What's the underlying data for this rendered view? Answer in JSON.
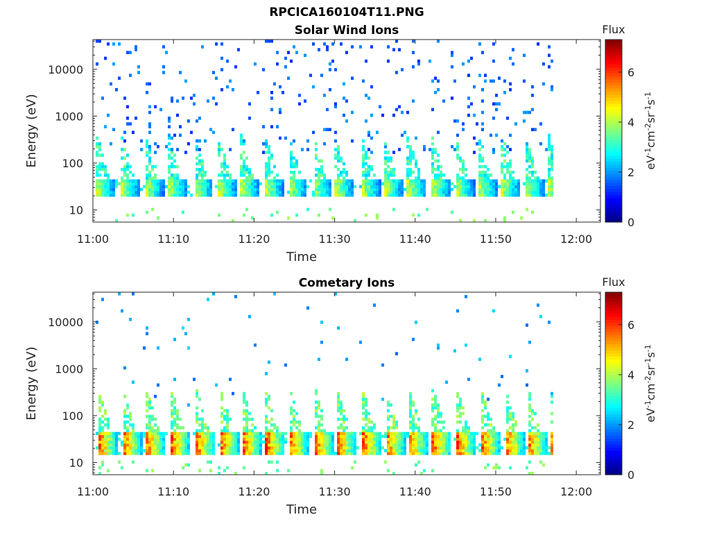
{
  "figure_title": "RPCICA160104T11.PNG",
  "chart_data": [
    {
      "type": "heatmap",
      "title": "Solar Wind Ions",
      "xlabel": "Time",
      "ylabel": "Energy (eV)",
      "x_ticks": [
        "11:00",
        "11:10",
        "11:20",
        "11:30",
        "11:40",
        "11:50",
        "12:00"
      ],
      "x_range": [
        "11:00",
        "12:03"
      ],
      "data_end": "11:57",
      "y_ticks": [
        10,
        100,
        1000,
        10000
      ],
      "y_scale": "log",
      "y_range": [
        5.5,
        43000
      ],
      "colorbar": {
        "title": "Flux",
        "label": "eV-1cm-2sr-1s-1",
        "ticks": [
          0,
          2,
          4,
          6
        ],
        "range": [
          0,
          7.3
        ],
        "colormap": "jet"
      },
      "burst_minutes": [
        0.3,
        3.3,
        6.3,
        9.2,
        12.4,
        15.4,
        18.2,
        21.2,
        24.1,
        27.2,
        29.9,
        33.2,
        36.0,
        38.9,
        41.9,
        44.8,
        47.7,
        50.6,
        53.5,
        56.4
      ],
      "core_band_eV": [
        18,
        40
      ],
      "core_flux": 4.8,
      "background_flux": 1.2
    },
    {
      "type": "heatmap",
      "title": "Cometary Ions",
      "xlabel": "Time",
      "ylabel": "Energy (eV)",
      "x_ticks": [
        "11:00",
        "11:10",
        "11:20",
        "11:30",
        "11:40",
        "11:50",
        "12:00"
      ],
      "x_range": [
        "11:00",
        "12:03"
      ],
      "data_end": "11:57",
      "y_ticks": [
        10,
        100,
        1000,
        10000
      ],
      "y_scale": "log",
      "y_range": [
        5.5,
        43000
      ],
      "colorbar": {
        "title": "Flux",
        "label": "eV-1cm-2sr-1s-1",
        "ticks": [
          0,
          2,
          4,
          6
        ],
        "range": [
          0,
          7.3
        ],
        "colormap": "jet"
      },
      "burst_minutes": [
        0.5,
        3.5,
        6.4,
        9.5,
        12.6,
        15.6,
        18.4,
        21.3,
        24.2,
        27.4,
        30.1,
        33.3,
        36.2,
        39.0,
        42.0,
        45.0,
        48.0,
        51.0,
        53.8,
        56.5
      ],
      "core_band_eV": [
        14,
        42
      ],
      "core_flux": 6.6,
      "background_flux": 1.6
    }
  ]
}
